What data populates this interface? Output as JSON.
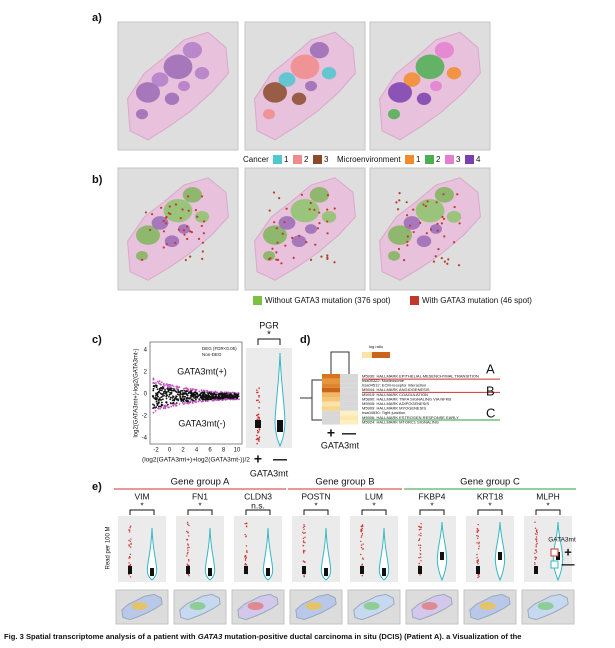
{
  "panel_a": {
    "label": "a)"
  },
  "legend_a": {
    "cancer": "Cancer",
    "cancer_items": [
      "1",
      "2",
      "3"
    ],
    "micro": "Microenvironment",
    "micro_items": [
      "1",
      "2",
      "3",
      "4"
    ]
  },
  "panel_b": {
    "label": "b)"
  },
  "legend_b": {
    "items": [
      "Without GATA3 mutation (376 spot)",
      "With GATA3 mutation (46 spot)"
    ]
  },
  "panel_c": {
    "label": "c)",
    "y_label": "log2(GATA3mt+)-log2(GATA3mt-)",
    "x_label": "(log2(GATA3mt+)+log2(GATA3mt-))/2",
    "legend": [
      "DEG (FDR<0.05)",
      "Non-DEG"
    ],
    "up_label": "GATA3mt(+)",
    "down_label": "GATA3mt(-)",
    "y_tick_labels": [
      "4",
      "2",
      "0",
      "-2",
      "-4"
    ],
    "x_tick_labels": [
      "-2",
      "0",
      "2",
      "4",
      "6",
      "8",
      "10"
    ],
    "violin_title": "PGR",
    "significance": "*",
    "group_plus": "+",
    "group_minus": "—",
    "group_label": "GATA3mt"
  },
  "panel_d": {
    "label": "d)",
    "scale_label": "log ratio",
    "pathways": [
      "M5930: HALLMARK EPITHELIAL MESENCHYMAL TRANSITION",
      "hsa05322: Nucleosome",
      "hsa04512: ECM-receptor interaction",
      "M5944: HALLMARK ANGIOGENESIS",
      "M5915: HALLMARK COAGULATION",
      "M5890: HALLMARK TNFA SIGNALING VIA NFKB",
      "M5905: HALLMARK ADIPOGENESIS",
      "M5909: HALLMARK MYOGENESIS",
      "hsa04530: Tight junction",
      "M5906: HALLMARK ESTROGEN RESPONSE EARLY",
      "M5924: HALLMARK MTORC1 SIGNALING"
    ],
    "group_letters": [
      "A",
      "B",
      "C"
    ],
    "group_plus": "+",
    "group_minus": "—",
    "group_label": "GATA3mt"
  },
  "panel_e": {
    "label": "e)",
    "groups": [
      "Gene group A",
      "Gene group B",
      "Gene group C"
    ],
    "genes": [
      "VIM",
      "FN1",
      "CLDN3",
      "POSTN",
      "LUM",
      "FKBP4",
      "KRT18",
      "MLPH"
    ],
    "significance": [
      "*",
      "*",
      "n.s.",
      "*",
      "*",
      "*",
      "*",
      "*"
    ],
    "y_label": "Read per 100 M",
    "legend_title": "GATA3mt",
    "legend_items": [
      "+",
      "—"
    ]
  },
  "caption": {
    "parts": [
      "Fig. 3 Spatial transcriptome analysis of a patient with ",
      "GATA3",
      " mutation-positive ductal carcinoma in situ (DCIS) (Patient A). ",
      "a",
      " Visualization of the"
    ]
  }
}
